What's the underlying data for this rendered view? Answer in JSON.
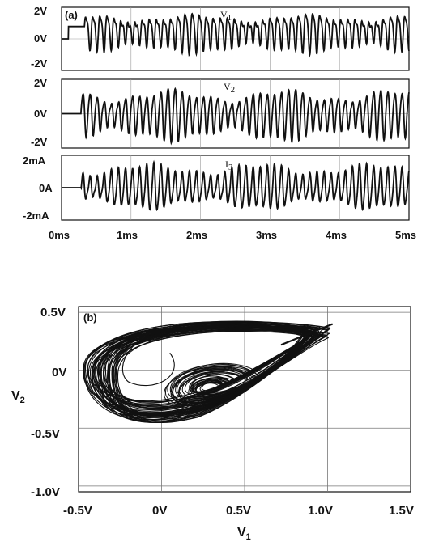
{
  "chart_data": [
    {
      "type": "line",
      "panel_label": "(a)",
      "xlabel": "",
      "x_tick_labels": [
        "0ms",
        "1ms",
        "2ms",
        "3ms",
        "4ms",
        "5ms"
      ],
      "xlim": [
        0,
        5
      ],
      "grid": true,
      "subplots": [
        {
          "name": "V1",
          "label_main": "V",
          "label_sub": "1",
          "y_tick_labels": [
            "2V",
            "0V",
            "-2V"
          ],
          "ylim": [
            -2.3,
            2.3
          ],
          "signal": {
            "start_ms": 0.1,
            "rise_to": 0.9,
            "oscillation_start_ms": 0.33,
            "offset": 0.6,
            "amplitude": 1.3,
            "cycles_per_ms": 9.8
          }
        },
        {
          "name": "V2",
          "label_main": "V",
          "label_sub": "2",
          "y_tick_labels": [
            "2V",
            "0V",
            "-2V"
          ],
          "ylim": [
            -2.3,
            2.3
          ],
          "signal": {
            "oscillation_start_ms": 0.28,
            "offset": 0.0,
            "amplitude": 1.6,
            "cycles_per_ms": 9.8
          }
        },
        {
          "name": "I3",
          "label_main": "I",
          "label_sub": "3",
          "y_tick_labels": [
            "2mA",
            "0A",
            "-2mA"
          ],
          "ylim": [
            -2.3,
            2.3
          ],
          "signal": {
            "oscillation_start_ms": 0.28,
            "offset": 0.0,
            "amplitude": 1.5,
            "cycles_per_ms": 9.8
          }
        }
      ]
    },
    {
      "type": "scatter",
      "panel_label": "(b)",
      "xlabel_main": "V",
      "xlabel_sub": "1",
      "ylabel_main": "V",
      "ylabel_sub": "2",
      "x_tick_labels": [
        "-0.5V",
        "0V",
        "0.5V",
        "1.0V",
        "1.5V"
      ],
      "x_ticks": [
        -0.5,
        0,
        0.5,
        1.0,
        1.5
      ],
      "y_tick_labels": [
        "0.5V",
        "0V",
        "-0.5V",
        "-1.0V"
      ],
      "y_ticks": [
        0.5,
        0,
        -0.5,
        -1.0
      ],
      "xlim": [
        -0.5,
        1.5
      ],
      "ylim": [
        -1.05,
        0.55
      ],
      "grid": true,
      "attractor": {
        "left_edge": -0.47,
        "right_tip": [
          1.03,
          0.4
        ],
        "top": 0.47,
        "bottom": -0.55,
        "inner_focus": [
          0.28,
          -0.15
        ]
      }
    }
  ]
}
